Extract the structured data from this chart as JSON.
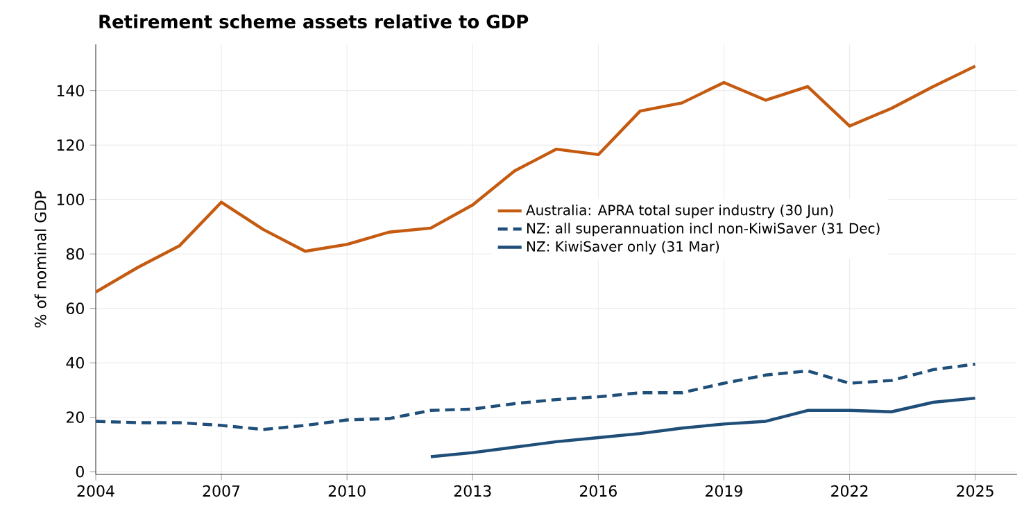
{
  "chart_data": {
    "type": "line",
    "title": "Retirement scheme assets relative to GDP",
    "ylabel": "% of nominal GDP",
    "xlim": [
      2004,
      2026
    ],
    "ylim": [
      -1,
      157
    ],
    "xticks": [
      2004,
      2007,
      2010,
      2013,
      2016,
      2019,
      2022,
      2025
    ],
    "yticks": [
      0,
      20,
      40,
      60,
      80,
      100,
      120,
      140
    ],
    "grid": true,
    "legend": "right",
    "marker": "none",
    "series": [
      {
        "name": "Australia: APRA total super industry (30 Jun)",
        "color": "#c55a11",
        "line_style": "solid",
        "x": [
          2004,
          2005,
          2006,
          2007,
          2008,
          2009,
          2010,
          2011,
          2012,
          2013,
          2014,
          2015,
          2016,
          2017,
          2018,
          2019,
          2020,
          2021,
          2022,
          2023,
          2024,
          2025
        ],
        "values": [
          66,
          75,
          83,
          99,
          89,
          81,
          83.5,
          88,
          89.5,
          98,
          110.5,
          118.5,
          116.5,
          132.5,
          135.5,
          143,
          136.5,
          141.5,
          127,
          133.5,
          141.5,
          149
        ]
      },
      {
        "name": "NZ: all superannuation incl non-KiwiSaver (31 Dec)",
        "color": "#1f4e79",
        "line_style": "dashed",
        "x": [
          2004,
          2005,
          2006,
          2007,
          2008,
          2009,
          2010,
          2011,
          2012,
          2013,
          2014,
          2015,
          2016,
          2017,
          2018,
          2019,
          2020,
          2021,
          2022,
          2023,
          2024,
          2025
        ],
        "values": [
          18.5,
          18,
          18,
          17,
          15.5,
          17,
          19,
          19.5,
          22.5,
          23,
          25,
          26.5,
          27.5,
          29,
          29,
          32.5,
          35.5,
          37,
          32.5,
          33.5,
          37.5,
          39.5
        ]
      },
      {
        "name": "NZ: KiwiSaver only (31 Mar)",
        "color": "#1f4e79",
        "line_style": "solid",
        "x": [
          2012,
          2013,
          2014,
          2015,
          2016,
          2017,
          2018,
          2019,
          2020,
          2021,
          2022,
          2023,
          2024,
          2025
        ],
        "values": [
          5.5,
          7,
          9,
          11,
          12.5,
          14,
          16,
          17.5,
          18.5,
          22.5,
          22.5,
          22,
          25.5,
          27
        ]
      }
    ]
  }
}
